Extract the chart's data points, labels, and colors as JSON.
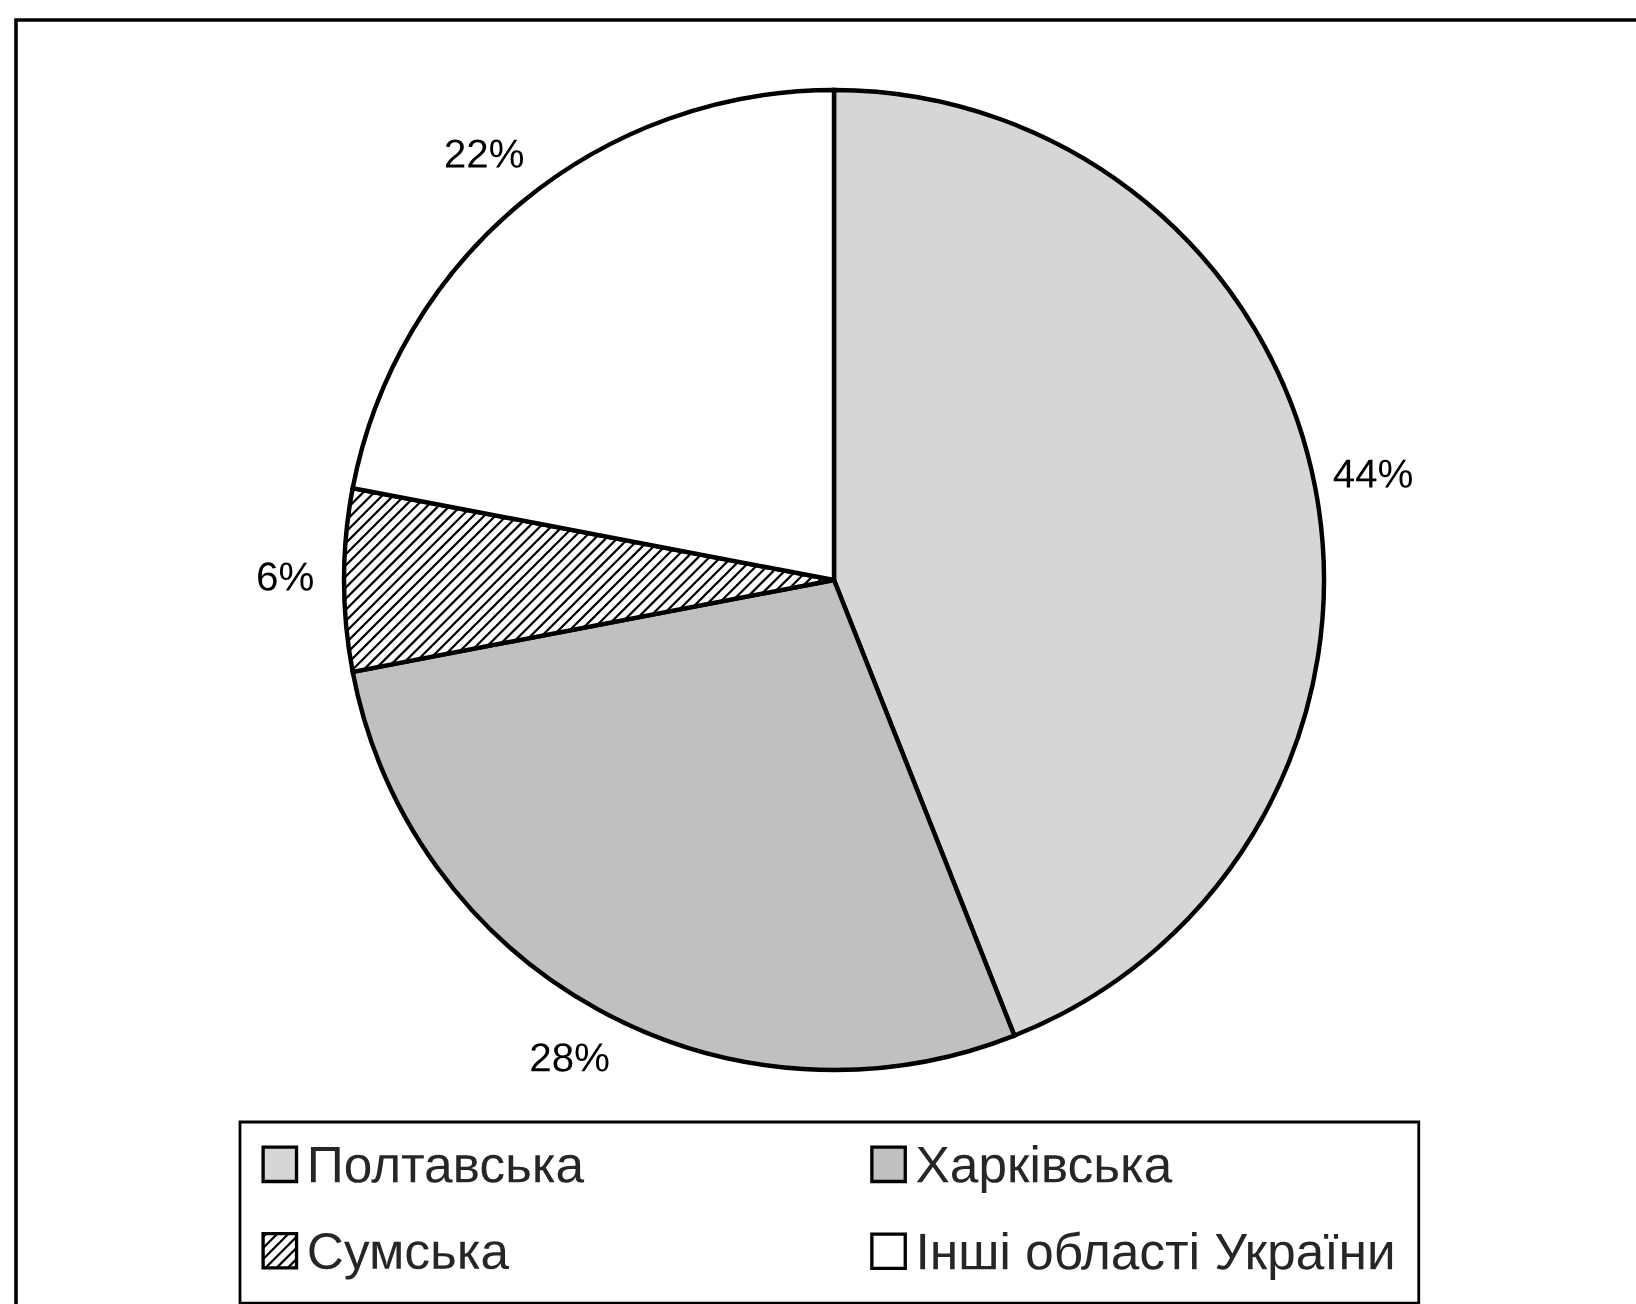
{
  "chart_data": {
    "type": "pie",
    "categories": [
      "Полтавська",
      "Харківська",
      "Сумська",
      "Інші області України"
    ],
    "values": [
      44,
      28,
      6,
      22
    ],
    "value_labels": [
      "44%",
      "28%",
      "6%",
      "22%"
    ],
    "colors": [
      "#d6d6d6",
      "#c0c0c0",
      "#000000",
      "#ffffff"
    ],
    "legend": "bottom"
  }
}
